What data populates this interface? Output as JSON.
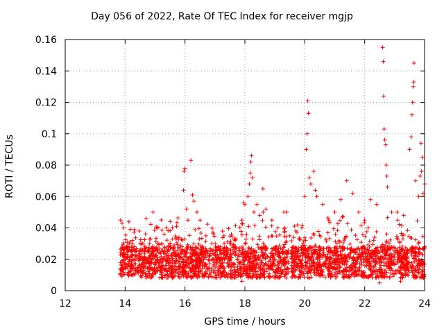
{
  "chart_data": {
    "type": "scatter",
    "title": "Day 056 of 2022, Rate Of TEC Index for receiver mgjp",
    "xlabel": "GPS time / hours",
    "ylabel": "ROTI / TECUs",
    "xlim": [
      12,
      24
    ],
    "ylim": [
      0,
      0.16
    ],
    "xticks": [
      12,
      14,
      16,
      18,
      20,
      22,
      24
    ],
    "xtick_labels": [
      "12",
      "14",
      "16",
      "18",
      "20",
      "22",
      "24"
    ],
    "yticks": [
      0,
      0.02,
      0.04,
      0.06,
      0.08,
      0.1,
      0.12,
      0.14,
      0.16
    ],
    "ytick_labels": [
      "0",
      "0.02",
      "0.04",
      "0.06",
      "0.08",
      "0.1",
      "0.12",
      "0.14",
      "0.16"
    ],
    "grid": true,
    "marker": "+",
    "color": "#ff0000",
    "series": [
      {
        "name": "ROTI",
        "points": [
          [
            13.85,
            0.045
          ],
          [
            13.9,
            0.043
          ],
          [
            13.95,
            0.04
          ],
          [
            13.9,
            0.01
          ],
          [
            14.1,
            0.022
          ],
          [
            14.3,
            0.028
          ],
          [
            14.5,
            0.03
          ],
          [
            14.7,
            0.046
          ],
          [
            14.9,
            0.025
          ],
          [
            15.1,
            0.04
          ],
          [
            15.3,
            0.036
          ],
          [
            15.5,
            0.03
          ],
          [
            15.7,
            0.033
          ],
          [
            15.9,
            0.028
          ],
          [
            15.95,
            0.064
          ],
          [
            15.97,
            0.076
          ],
          [
            16.0,
            0.078
          ],
          [
            16.05,
            0.052
          ],
          [
            16.1,
            0.045
          ],
          [
            16.2,
            0.083
          ],
          [
            16.25,
            0.061
          ],
          [
            16.3,
            0.057
          ],
          [
            16.4,
            0.05
          ],
          [
            16.5,
            0.045
          ],
          [
            16.7,
            0.035
          ],
          [
            16.9,
            0.03
          ],
          [
            17.1,
            0.028
          ],
          [
            17.3,
            0.035
          ],
          [
            17.5,
            0.03
          ],
          [
            17.7,
            0.033
          ],
          [
            17.9,
            0.045
          ],
          [
            17.95,
            0.056
          ],
          [
            18.0,
            0.055
          ],
          [
            18.1,
            0.06
          ],
          [
            18.15,
            0.068
          ],
          [
            18.18,
            0.075
          ],
          [
            18.2,
            0.082
          ],
          [
            18.22,
            0.086
          ],
          [
            18.25,
            0.072
          ],
          [
            18.3,
            0.05
          ],
          [
            18.4,
            0.055
          ],
          [
            18.5,
            0.048
          ],
          [
            18.6,
            0.065
          ],
          [
            18.7,
            0.052
          ],
          [
            18.9,
            0.045
          ],
          [
            19.1,
            0.04
          ],
          [
            19.3,
            0.05
          ],
          [
            19.5,
            0.035
          ],
          [
            19.7,
            0.038
          ],
          [
            19.9,
            0.04
          ],
          [
            20.0,
            0.06
          ],
          [
            20.05,
            0.09
          ],
          [
            20.08,
            0.1
          ],
          [
            20.1,
            0.121
          ],
          [
            20.12,
            0.113
          ],
          [
            20.15,
            0.072
          ],
          [
            20.2,
            0.068
          ],
          [
            20.3,
            0.076
          ],
          [
            20.35,
            0.064
          ],
          [
            20.4,
            0.06
          ],
          [
            20.6,
            0.055
          ],
          [
            20.8,
            0.045
          ],
          [
            21.0,
            0.05
          ],
          [
            21.2,
            0.058
          ],
          [
            21.4,
            0.07
          ],
          [
            21.6,
            0.062
          ],
          [
            21.8,
            0.05
          ],
          [
            22.0,
            0.045
          ],
          [
            22.2,
            0.058
          ],
          [
            22.4,
            0.055
          ],
          [
            22.6,
            0.155
          ],
          [
            22.62,
            0.146
          ],
          [
            22.63,
            0.124
          ],
          [
            22.65,
            0.103
          ],
          [
            22.67,
            0.096
          ],
          [
            22.7,
            0.093
          ],
          [
            22.72,
            0.08
          ],
          [
            22.74,
            0.073
          ],
          [
            22.76,
            0.066
          ],
          [
            22.9,
            0.05
          ],
          [
            23.1,
            0.045
          ],
          [
            23.3,
            0.048
          ],
          [
            23.5,
            0.09
          ],
          [
            23.55,
            0.098
          ],
          [
            23.58,
            0.112
          ],
          [
            23.6,
            0.12
          ],
          [
            23.62,
            0.13
          ],
          [
            23.64,
            0.133
          ],
          [
            23.65,
            0.145
          ],
          [
            23.7,
            0.07
          ],
          [
            23.8,
            0.06
          ],
          [
            23.85,
            0.073
          ],
          [
            23.88,
            0.094
          ],
          [
            23.9,
            0.076
          ],
          [
            23.92,
            0.085
          ],
          [
            23.95,
            0.062
          ],
          [
            24.0,
            0.068
          ],
          [
            24.0,
            0.028
          ],
          [
            22.5,
            0.005
          ],
          [
            23.2,
            0.006
          ],
          [
            17.9,
            0.006
          ],
          [
            14.7,
            0.008
          ],
          [
            16.9,
            0.009
          ],
          [
            19.0,
            0.008
          ],
          [
            21.8,
            0.01
          ]
        ]
      }
    ]
  }
}
